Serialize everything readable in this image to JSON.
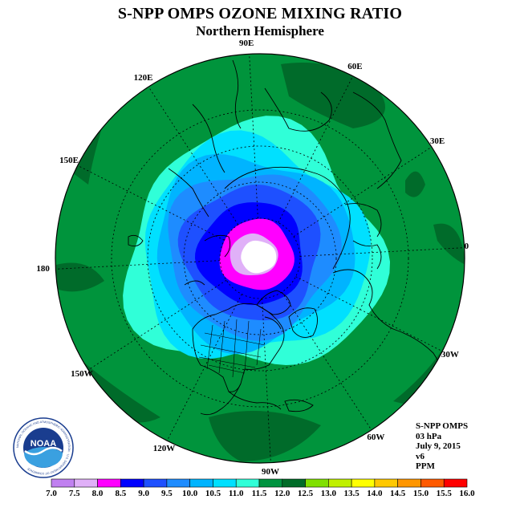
{
  "header": {
    "title": "S-NPP OMPS OZONE MIXING RATIO",
    "subtitle": "Northern Hemisphere"
  },
  "longitude_labels": [
    {
      "text": "90E",
      "lon": 90
    },
    {
      "text": "60E",
      "lon": 60
    },
    {
      "text": "30E",
      "lon": 30
    },
    {
      "text": "0",
      "lon": 0
    },
    {
      "text": "30W",
      "lon": -30
    },
    {
      "text": "60W",
      "lon": -60
    },
    {
      "text": "90W",
      "lon": -90
    },
    {
      "text": "120W",
      "lon": -120
    },
    {
      "text": "150W",
      "lon": -150
    },
    {
      "text": "180",
      "lon": 180
    },
    {
      "text": "150E",
      "lon": 150
    },
    {
      "text": "120E",
      "lon": 120
    }
  ],
  "info": {
    "instrument": "S-NPP OMPS",
    "level": "03 hPa",
    "date": "July 9, 2015",
    "version": "v6",
    "units": "PPM"
  },
  "logo": {
    "text": "NOAA",
    "ring_text": "NATIONAL OCEANIC AND ATMOSPHERIC ADMINISTRATION · U.S. DEPARTMENT OF COMMERCE"
  },
  "colorbar": {
    "ticks": [
      "7.0",
      "7.5",
      "8.0",
      "8.5",
      "9.0",
      "9.5",
      "10.0",
      "10.5",
      "11.0",
      "11.5",
      "12.0",
      "12.5",
      "13.0",
      "13.5",
      "14.0",
      "14.5",
      "15.0",
      "15.5",
      "16.0"
    ],
    "colors": [
      "#c080f0",
      "#e0b0f8",
      "#ff00ff",
      "#0000ff",
      "#1e50ff",
      "#1e8cff",
      "#00b4ff",
      "#00e0ff",
      "#30ffd8",
      "#009440",
      "#006c28",
      "#80e000",
      "#c0f000",
      "#ffff00",
      "#ffc800",
      "#ff9600",
      "#ff5a00",
      "#ff0000",
      "#a05030"
    ]
  },
  "map": {
    "ocean_color": "#00943c",
    "dark_green": "#006b2a",
    "bands": [
      {
        "value": 11.0,
        "color": "#30ffd8"
      },
      {
        "value": 10.5,
        "color": "#00e0ff"
      },
      {
        "value": 10.0,
        "color": "#00b4ff"
      },
      {
        "value": 9.5,
        "color": "#1e8cff"
      },
      {
        "value": 9.0,
        "color": "#1e50ff"
      },
      {
        "value": 8.5,
        "color": "#0000ff"
      },
      {
        "value": 8.0,
        "color": "#ff00ff"
      },
      {
        "value": 7.5,
        "color": "#e0b0f8"
      },
      {
        "value": 7.0,
        "color": "#ffffff"
      }
    ]
  }
}
